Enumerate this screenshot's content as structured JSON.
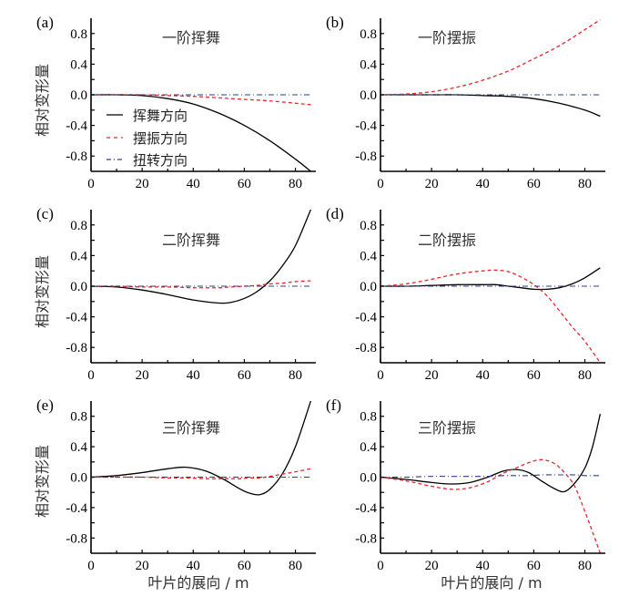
{
  "figure": {
    "ylabel": "相对变形量",
    "xlabel": "叶片的展向 / m"
  },
  "legend": {
    "entries": [
      {
        "label": "挥舞方向",
        "color": "#000000",
        "style": "solid"
      },
      {
        "label": "摆振方向",
        "color": "#e8262b",
        "style": "dashed"
      },
      {
        "label": "扭转方向",
        "color": "#2b3f8f",
        "style": "dashdot"
      }
    ]
  },
  "chart_data": [
    {
      "type": "line",
      "tag": "(a)",
      "title": "一阶挥舞",
      "xlim": [
        0,
        88
      ],
      "ylim": [
        -1,
        1
      ],
      "xticks": [
        0,
        20,
        40,
        60,
        80
      ],
      "yticks": [
        "0.8",
        "0.4",
        "0.0",
        "-0.4",
        "-0.8"
      ],
      "x": [
        0,
        10,
        20,
        30,
        40,
        50,
        60,
        70,
        80,
        86
      ],
      "series": [
        {
          "name": "挥舞方向",
          "values": [
            0,
            0,
            -0.01,
            -0.05,
            -0.12,
            -0.24,
            -0.4,
            -0.6,
            -0.84,
            -1.0
          ]
        },
        {
          "name": "摆振方向",
          "values": [
            0,
            0,
            0,
            -0.01,
            -0.02,
            -0.04,
            -0.06,
            -0.08,
            -0.11,
            -0.13
          ]
        },
        {
          "name": "扭转方向",
          "values": [
            0,
            0,
            0,
            0,
            0,
            0,
            0,
            0,
            0,
            0
          ]
        }
      ]
    },
    {
      "type": "line",
      "tag": "(b)",
      "title": "一阶摆振",
      "xlim": [
        0,
        88
      ],
      "ylim": [
        -1,
        1
      ],
      "xticks": [
        0,
        20,
        40,
        60,
        80
      ],
      "yticks": [
        "0.8",
        "0.4",
        "0.0",
        "-0.4",
        "-0.8"
      ],
      "x": [
        0,
        10,
        20,
        30,
        40,
        50,
        60,
        70,
        80,
        86
      ],
      "series": [
        {
          "name": "挥舞方向",
          "values": [
            0,
            0,
            0,
            0,
            -0.01,
            -0.02,
            -0.05,
            -0.11,
            -0.2,
            -0.28
          ]
        },
        {
          "name": "摆振方向",
          "values": [
            0,
            0.01,
            0.04,
            0.1,
            0.19,
            0.31,
            0.47,
            0.64,
            0.85,
            0.98
          ]
        },
        {
          "name": "扭转方向",
          "values": [
            0,
            0,
            0,
            0,
            0,
            0,
            0,
            0,
            0,
            0
          ]
        }
      ]
    },
    {
      "type": "line",
      "tag": "(c)",
      "title": "二阶挥舞",
      "xlim": [
        0,
        88
      ],
      "ylim": [
        -1,
        1
      ],
      "xticks": [
        0,
        20,
        40,
        60,
        80
      ],
      "yticks": [
        "0.8",
        "0.4",
        "0.0",
        "-0.4",
        "-0.8"
      ],
      "x": [
        0,
        10,
        20,
        30,
        40,
        50,
        55,
        60,
        65,
        70,
        75,
        80,
        86
      ],
      "series": [
        {
          "name": "挥舞方向",
          "values": [
            0,
            -0.01,
            -0.05,
            -0.11,
            -0.18,
            -0.22,
            -0.21,
            -0.16,
            -0.07,
            0.07,
            0.27,
            0.53,
            1.0
          ]
        },
        {
          "name": "摆振方向",
          "values": [
            0,
            0,
            -0.01,
            -0.01,
            -0.02,
            -0.02,
            -0.01,
            0,
            0.01,
            0.03,
            0.04,
            0.06,
            0.07
          ]
        },
        {
          "name": "扭转方向",
          "values": [
            0,
            0,
            0,
            0,
            0,
            0,
            0,
            0,
            0,
            0,
            0,
            0,
            0
          ]
        }
      ]
    },
    {
      "type": "line",
      "tag": "(d)",
      "title": "二阶摆振",
      "xlim": [
        0,
        88
      ],
      "ylim": [
        -1,
        1
      ],
      "xticks": [
        0,
        20,
        40,
        60,
        80
      ],
      "yticks": [
        "0.8",
        "0.4",
        "0.0",
        "-0.4",
        "-0.8"
      ],
      "x": [
        0,
        10,
        20,
        30,
        40,
        45,
        50,
        55,
        60,
        65,
        70,
        75,
        80,
        86
      ],
      "series": [
        {
          "name": "挥舞方向",
          "values": [
            0,
            0,
            0.01,
            0.02,
            0.02,
            0.02,
            0.0,
            -0.02,
            -0.04,
            -0.04,
            -0.02,
            0.03,
            0.11,
            0.24
          ]
        },
        {
          "name": "摆振方向",
          "values": [
            0,
            0.03,
            0.09,
            0.16,
            0.2,
            0.21,
            0.19,
            0.12,
            0.02,
            -0.12,
            -0.32,
            -0.53,
            -0.72,
            -1.0
          ]
        },
        {
          "name": "扭转方向",
          "values": [
            0,
            0,
            0,
            0,
            0,
            0,
            0,
            0,
            0,
            0,
            0,
            0,
            0,
            0
          ]
        }
      ]
    },
    {
      "type": "line",
      "tag": "(e)",
      "title": "三阶挥舞",
      "xlim": [
        0,
        88
      ],
      "ylim": [
        -1,
        1
      ],
      "xticks": [
        0,
        20,
        40,
        60,
        80
      ],
      "yticks": [
        "0.8",
        "0.4",
        "0.0",
        "-0.4",
        "-0.8"
      ],
      "x": [
        0,
        10,
        20,
        30,
        37,
        45,
        52,
        58,
        62,
        66,
        70,
        75,
        80,
        86
      ],
      "series": [
        {
          "name": "挥舞方向",
          "values": [
            0,
            0.02,
            0.06,
            0.11,
            0.13,
            0.08,
            -0.03,
            -0.15,
            -0.21,
            -0.23,
            -0.16,
            0.05,
            0.4,
            1.0
          ]
        },
        {
          "name": "摆振方向",
          "values": [
            0,
            0,
            0,
            -0.01,
            -0.01,
            -0.02,
            -0.02,
            -0.02,
            -0.01,
            -0.01,
            0.01,
            0.04,
            0.07,
            0.11
          ]
        },
        {
          "name": "扭转方向",
          "values": [
            0,
            0,
            0,
            0,
            0,
            0,
            0,
            0,
            0,
            0,
            0,
            0,
            0,
            0
          ]
        }
      ]
    },
    {
      "type": "line",
      "tag": "(f)",
      "title": "三阶摆振",
      "xlim": [
        0,
        88
      ],
      "ylim": [
        -1,
        1
      ],
      "xticks": [
        0,
        20,
        40,
        60,
        80
      ],
      "yticks": [
        "0.8",
        "0.4",
        "0.0",
        "-0.4",
        "-0.8"
      ],
      "x": [
        0,
        10,
        20,
        28,
        35,
        42,
        48,
        53,
        58,
        63,
        68,
        72,
        76,
        80,
        83,
        86
      ],
      "series": [
        {
          "name": "挥舞方向",
          "values": [
            0,
            -0.03,
            -0.07,
            -0.09,
            -0.07,
            0.0,
            0.08,
            0.1,
            0.06,
            -0.05,
            -0.15,
            -0.19,
            -0.08,
            0.12,
            0.4,
            0.83
          ]
        },
        {
          "name": "摆振方向",
          "values": [
            0,
            -0.05,
            -0.12,
            -0.16,
            -0.14,
            -0.06,
            0.05,
            0.12,
            0.19,
            0.23,
            0.18,
            0.06,
            -0.12,
            -0.45,
            -0.72,
            -1.0
          ]
        },
        {
          "name": "扭转方向",
          "values": [
            0,
            0,
            0.01,
            0.01,
            0.01,
            0.01,
            0.02,
            0.02,
            0.02,
            0.03,
            0.03,
            0.03,
            0.03,
            0.02,
            0.02,
            0.02
          ]
        }
      ]
    }
  ]
}
